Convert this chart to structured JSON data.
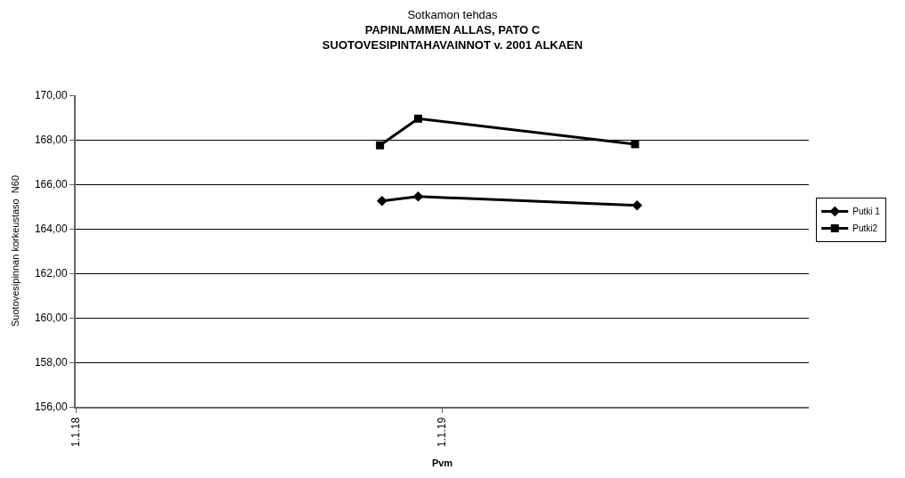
{
  "chart_data": {
    "type": "line",
    "subtitle": "Sotkamon tehdas",
    "title": "PAPINLAMMEN ALLAS, PATO C\nSUOTOVESIPINTAHAVAINNOT v. 2001 ALKAEN",
    "xlabel": "Pvm",
    "ylabel": "Suotovesipinnan korkeustaso  N60",
    "series": [
      {
        "name": "Putki 1",
        "color": "#000000",
        "marker": "diamond",
        "x": [
          "2018-11-02",
          "2018-12-08",
          "2019-07-14"
        ],
        "values": [
          165.25,
          165.45,
          165.05
        ]
      },
      {
        "name": "Putki2",
        "color": "#000000",
        "marker": "square",
        "x": [
          "2018-10-31",
          "2018-12-08",
          "2019-07-12"
        ],
        "values": [
          167.75,
          168.95,
          167.8
        ]
      }
    ],
    "xlim": [
      "2018-01-01",
      "2020-01-01"
    ],
    "xticks": [
      {
        "value": "2018-01-01",
        "label": "1.1.18"
      },
      {
        "value": "2019-01-01",
        "label": "1.1.19"
      }
    ],
    "ylim": [
      156,
      170
    ],
    "yticks": [
      {
        "value": 156,
        "label": "156,00"
      },
      {
        "value": 158,
        "label": "158,00"
      },
      {
        "value": 160,
        "label": "160,00"
      },
      {
        "value": 162,
        "label": "162,00"
      },
      {
        "value": 164,
        "label": "164,00"
      },
      {
        "value": 166,
        "label": "166,00"
      },
      {
        "value": 168,
        "label": "168,00"
      },
      {
        "value": 170,
        "label": "170,00"
      }
    ],
    "grid": "y",
    "legend": "right",
    "line_style": "solid"
  }
}
